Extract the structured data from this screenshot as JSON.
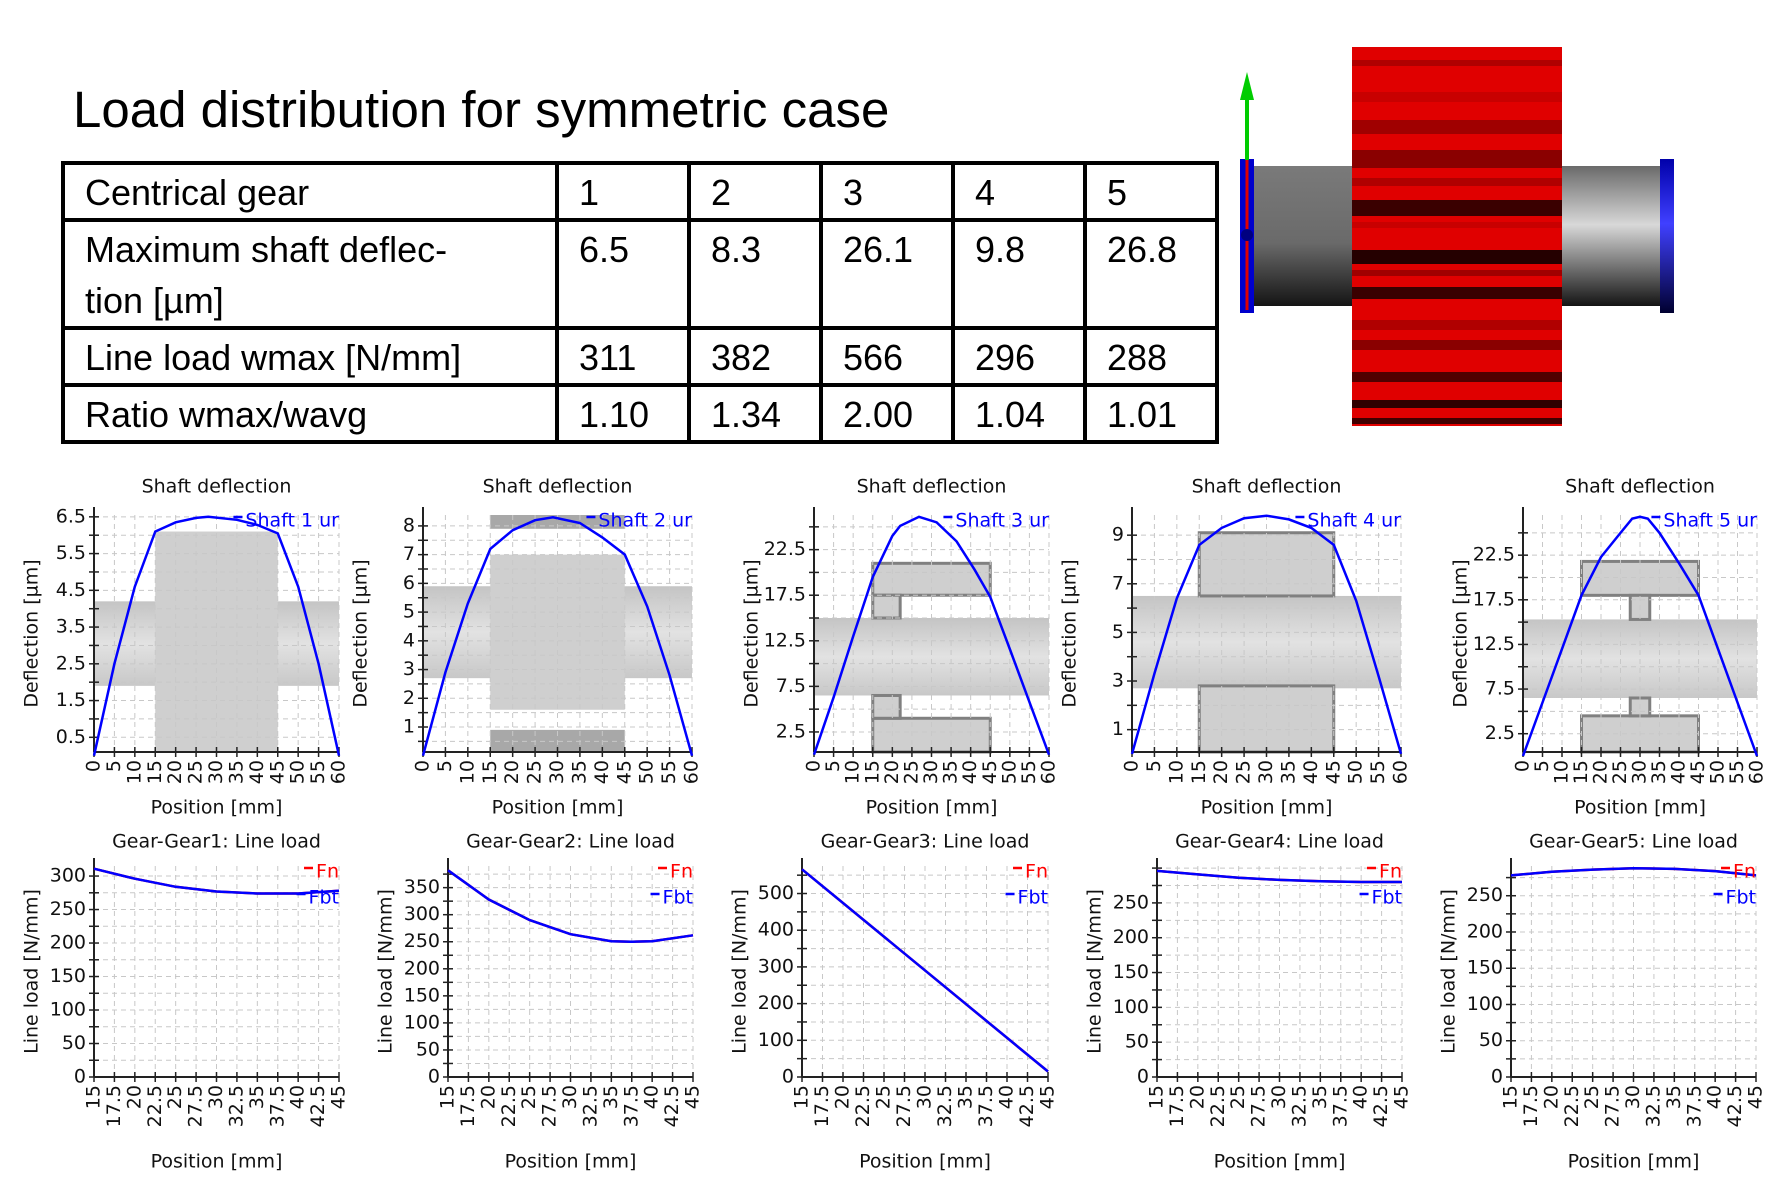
{
  "title": "Load distribution for symmetric case",
  "table": {
    "rows": [
      [
        "Centrical gear",
        "1",
        "2",
        "3",
        "4",
        "5"
      ],
      [
        "Maximum shaft deflec-\ntion [µm]",
        "6.5",
        "8.3",
        "26.1",
        "9.8",
        "26.8"
      ],
      [
        "Line load wmax [N/mm]",
        "311",
        "382",
        "566",
        "296",
        "288"
      ],
      [
        "Ratio wmax/wavg",
        "1.10",
        "1.34",
        "2.00",
        "1.04",
        "1.01"
      ]
    ]
  },
  "model_view": {
    "icon": "gear-on-shaft-3d-model",
    "colors": {
      "gear": "#e00000",
      "shaft": "#6e6e6e",
      "bearing": "#0000cc",
      "axis_y": "#00cc00"
    }
  },
  "colors": {
    "shaft_line": "#0000ff",
    "fn": "#ff0000",
    "fbt": "#0000ff",
    "grid": "#c8c8c8"
  },
  "chart_data": [
    {
      "type": "line",
      "title": "Shaft deflection",
      "xlabel": "Position [mm]",
      "ylabel": "Deflection [µm]",
      "xlim": [
        0,
        60
      ],
      "ylim": [
        0.1,
        6.55
      ],
      "grid": true,
      "legend": "top-right",
      "xticks": [
        "0",
        "5",
        "10",
        "15",
        "20",
        "25",
        "30",
        "35",
        "40",
        "45",
        "50",
        "55",
        "60"
      ],
      "yticks": [
        "0.5",
        "1.5",
        "2.5",
        "3.5",
        "4.5",
        "5.5",
        "6.5"
      ],
      "series": [
        {
          "name": "Shaft 1 ur",
          "color": "#0000ff",
          "x": [
            0,
            5,
            10,
            15,
            20,
            25,
            28,
            35,
            40,
            45,
            50,
            55,
            60
          ],
          "y": [
            0,
            2.5,
            4.6,
            6.1,
            6.35,
            6.47,
            6.5,
            6.42,
            6.28,
            6.05,
            4.6,
            2.5,
            0
          ]
        }
      ]
    },
    {
      "type": "line",
      "title": "Shaft deflection",
      "xlabel": "Position [mm]",
      "ylabel": "Deflection [µm]",
      "xlim": [
        0,
        60
      ],
      "ylim": [
        0.13,
        8.38
      ],
      "grid": true,
      "legend": "top-right",
      "xticks": [
        "0",
        "5",
        "10",
        "15",
        "20",
        "25",
        "30",
        "35",
        "40",
        "45",
        "50",
        "55",
        "60"
      ],
      "yticks": [
        "1",
        "2",
        "3",
        "4",
        "5",
        "6",
        "7",
        "8"
      ],
      "series": [
        {
          "name": "Shaft 2 ur",
          "color": "#0000ff",
          "x": [
            0,
            5,
            10,
            15,
            20,
            25,
            29,
            35,
            40,
            45,
            50,
            55,
            60
          ],
          "y": [
            0,
            2.9,
            5.3,
            7.2,
            7.85,
            8.2,
            8.3,
            8.1,
            7.6,
            7.0,
            5.2,
            2.8,
            0
          ]
        }
      ]
    },
    {
      "type": "line",
      "title": "Shaft deflection",
      "xlabel": "Position [mm]",
      "ylabel": "Deflection [µm]",
      "xlim": [
        0,
        60
      ],
      "ylim": [
        0.3,
        26.3
      ],
      "grid": true,
      "legend": "top-right",
      "xticks": [
        "0",
        "5",
        "10",
        "15",
        "20",
        "25",
        "30",
        "35",
        "40",
        "45",
        "50",
        "55",
        "60"
      ],
      "yticks": [
        "2.5",
        "7.5",
        "12.5",
        "17.5",
        "22.5"
      ],
      "series": [
        {
          "name": "Shaft 3 ur",
          "color": "#0000ff",
          "x": [
            0,
            5,
            10,
            15,
            20,
            22,
            26.8,
            31.3,
            36.4,
            41,
            45,
            50,
            55,
            60
          ],
          "y": [
            0,
            6.3,
            13,
            19.5,
            24,
            25.1,
            26.1,
            25.5,
            23.4,
            20.3,
            17.3,
            11.6,
            5.8,
            0
          ]
        }
      ]
    },
    {
      "type": "line",
      "title": "Shaft deflection",
      "xlabel": "Position [mm]",
      "ylabel": "Deflection [µm]",
      "xlim": [
        0,
        60
      ],
      "ylim": [
        0.08,
        9.83
      ],
      "grid": true,
      "legend": "top-right",
      "xticks": [
        "0",
        "5",
        "10",
        "15",
        "20",
        "25",
        "30",
        "35",
        "40",
        "45",
        "50",
        "55",
        "60"
      ],
      "yticks": [
        "1",
        "3",
        "5",
        "7",
        "9"
      ],
      "series": [
        {
          "name": "Shaft 4 ur",
          "color": "#0000ff",
          "x": [
            0,
            5,
            10,
            15,
            20,
            25,
            30,
            35,
            40,
            45,
            50,
            55,
            60
          ],
          "y": [
            0,
            3.3,
            6.4,
            8.6,
            9.3,
            9.7,
            9.8,
            9.65,
            9.3,
            8.6,
            6.3,
            3.2,
            0
          ]
        }
      ]
    },
    {
      "type": "line",
      "title": "Shaft deflection",
      "xlabel": "Position [mm]",
      "ylabel": "Deflection [µm]",
      "xlim": [
        0,
        60
      ],
      "ylim": [
        0.45,
        27.0
      ],
      "grid": true,
      "legend": "top-right",
      "xticks": [
        "0",
        "5",
        "10",
        "15",
        "20",
        "25",
        "30",
        "35",
        "40",
        "45",
        "50",
        "55",
        "60"
      ],
      "yticks": [
        "2.5",
        "7.5",
        "12.5",
        "17.5",
        "22.5"
      ],
      "series": [
        {
          "name": "Shaft 5 ur",
          "color": "#0000ff",
          "x": [
            0,
            5,
            10,
            15,
            20,
            25,
            28,
            30,
            32,
            35,
            40,
            45,
            50,
            55,
            60
          ],
          "y": [
            0,
            6,
            12,
            18,
            22.3,
            25,
            26.6,
            26.8,
            26.6,
            25,
            21.6,
            18,
            12,
            6,
            0
          ]
        }
      ]
    },
    {
      "type": "line",
      "title": "Gear-Gear1: Line load",
      "xlabel": "Position [mm]",
      "ylabel": "Line load [N/mm]",
      "xlim": [
        15,
        45
      ],
      "ylim": [
        0,
        315
      ],
      "grid": true,
      "legend": "top-right",
      "xticks": [
        "15",
        "17.5",
        "20",
        "22.5",
        "25",
        "27.5",
        "30",
        "32.5",
        "35",
        "37.5",
        "40",
        "42.5",
        "45"
      ],
      "yticks": [
        "0",
        "50",
        "100",
        "150",
        "200",
        "250",
        "300"
      ],
      "series": [
        {
          "name": "Fn",
          "color": "#ff0000",
          "x": [
            15,
            20,
            25,
            30,
            35,
            40,
            45
          ],
          "y": [
            311,
            296,
            284,
            277,
            274,
            274,
            278
          ]
        },
        {
          "name": "Fbt",
          "color": "#0000ff",
          "x": [
            15,
            20,
            25,
            30,
            35,
            40,
            45
          ],
          "y": [
            311,
            296,
            284,
            277,
            274,
            274,
            278
          ]
        }
      ]
    },
    {
      "type": "line",
      "title": "Gear-Gear2: Line load",
      "xlabel": "Position [mm]",
      "ylabel": "Line load [N/mm]",
      "xlim": [
        15,
        45
      ],
      "ylim": [
        0,
        390
      ],
      "grid": true,
      "legend": "top-right",
      "xticks": [
        "15",
        "17.5",
        "20",
        "22.5",
        "25",
        "27.5",
        "30",
        "32.5",
        "35",
        "37.5",
        "40",
        "42.5",
        "45"
      ],
      "yticks": [
        "0",
        "50",
        "100",
        "150",
        "200",
        "250",
        "300",
        "350"
      ],
      "series": [
        {
          "name": "Fn",
          "color": "#ff0000",
          "x": [
            15,
            20,
            25,
            30,
            35,
            37.5,
            40,
            45
          ],
          "y": [
            382,
            328,
            290,
            264,
            251,
            250,
            251,
            262
          ]
        },
        {
          "name": "Fbt",
          "color": "#0000ff",
          "x": [
            15,
            20,
            25,
            30,
            35,
            37.5,
            40,
            45
          ],
          "y": [
            382,
            328,
            290,
            264,
            251,
            250,
            251,
            262
          ]
        }
      ]
    },
    {
      "type": "line",
      "title": "Gear-Gear3: Line load",
      "xlabel": "Position [mm]",
      "ylabel": "Line load [N/mm]",
      "xlim": [
        15,
        45
      ],
      "ylim": [
        0,
        575
      ],
      "grid": true,
      "legend": "top-right",
      "xticks": [
        "15",
        "17.5",
        "20",
        "22.5",
        "25",
        "27.5",
        "30",
        "32.5",
        "35",
        "37.5",
        "40",
        "42.5",
        "45"
      ],
      "yticks": [
        "0",
        "100",
        "200",
        "300",
        "400",
        "500"
      ],
      "series": [
        {
          "name": "Fn",
          "color": "#ff0000",
          "x": [
            15,
            45
          ],
          "y": [
            566,
            15
          ]
        },
        {
          "name": "Fbt",
          "color": "#0000ff",
          "x": [
            15,
            45
          ],
          "y": [
            566,
            15
          ]
        }
      ]
    },
    {
      "type": "line",
      "title": "Gear-Gear4: Line load",
      "xlabel": "Position [mm]",
      "ylabel": "Line load [N/mm]",
      "xlim": [
        15,
        45
      ],
      "ylim": [
        0,
        303
      ],
      "grid": true,
      "legend": "top-right",
      "xticks": [
        "15",
        "17.5",
        "20",
        "22.5",
        "25",
        "27.5",
        "30",
        "32.5",
        "35",
        "37.5",
        "40",
        "42.5",
        "45"
      ],
      "yticks": [
        "0",
        "50",
        "100",
        "150",
        "200",
        "250"
      ],
      "series": [
        {
          "name": "Fn",
          "color": "#ff0000",
          "x": [
            15,
            20,
            25,
            30,
            35,
            40,
            45
          ],
          "y": [
            296,
            291,
            286,
            283,
            281,
            280,
            280
          ]
        },
        {
          "name": "Fbt",
          "color": "#0000ff",
          "x": [
            15,
            20,
            25,
            30,
            35,
            40,
            45
          ],
          "y": [
            296,
            291,
            286,
            283,
            281,
            280,
            280
          ]
        }
      ]
    },
    {
      "type": "line",
      "title": "Gear-Gear5: Line load",
      "xlabel": "Position [mm]",
      "ylabel": "Line load [N/mm]",
      "xlim": [
        15,
        45
      ],
      "ylim": [
        0,
        291
      ],
      "grid": true,
      "legend": "top-right",
      "xticks": [
        "15",
        "17.5",
        "20",
        "22.5",
        "25",
        "27.5",
        "30",
        "32.5",
        "35",
        "37.5",
        "40",
        "42.5",
        "45"
      ],
      "yticks": [
        "0",
        "50",
        "100",
        "150",
        "200",
        "250"
      ],
      "series": [
        {
          "name": "Fn",
          "color": "#ff0000",
          "x": [
            15,
            20,
            25,
            30,
            35,
            40,
            45
          ],
          "y": [
            278,
            283,
            286,
            288,
            287,
            284,
            278
          ]
        },
        {
          "name": "Fbt",
          "color": "#0000ff",
          "x": [
            15,
            20,
            25,
            30,
            35,
            40,
            45
          ],
          "y": [
            278,
            283,
            286,
            288,
            287,
            284,
            278
          ]
        }
      ]
    }
  ]
}
